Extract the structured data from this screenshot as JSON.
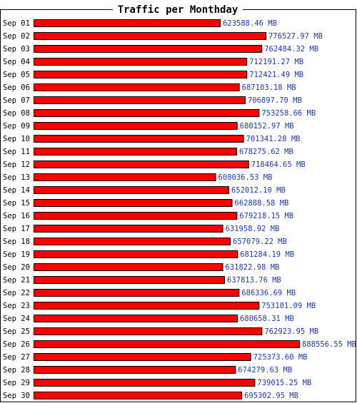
{
  "chart_data": {
    "type": "bar",
    "orientation": "horizontal",
    "title": "Traffic per Monthday",
    "unit": "MB",
    "categories": [
      "Sep 01",
      "Sep 02",
      "Sep 03",
      "Sep 04",
      "Sep 05",
      "Sep 06",
      "Sep 07",
      "Sep 08",
      "Sep 09",
      "Sep 10",
      "Sep 11",
      "Sep 12",
      "Sep 13",
      "Sep 14",
      "Sep 15",
      "Sep 16",
      "Sep 17",
      "Sep 18",
      "Sep 19",
      "Sep 20",
      "Sep 21",
      "Sep 22",
      "Sep 23",
      "Sep 24",
      "Sep 25",
      "Sep 26",
      "Sep 27",
      "Sep 28",
      "Sep 29",
      "Sep 30"
    ],
    "values": [
      623588.46,
      776527.97,
      762484.32,
      712191.27,
      712421.49,
      687103.18,
      706897.7,
      753258.66,
      680152.97,
      701341.28,
      678275.62,
      718464.65,
      608036.53,
      652012.1,
      662888.58,
      679218.15,
      631958.92,
      657079.22,
      681284.19,
      631822.98,
      637813.76,
      686336.69,
      753101.09,
      680658.31,
      762923.95,
      888556.55,
      725373.6,
      674279.63,
      739015.25,
      695302.95
    ],
    "value_labels": [
      "623588.46 MB",
      "776527.97 MB",
      "762484.32 MB",
      "712191.27 MB",
      "712421.49 MB",
      "687103.18 MB",
      "706897.70 MB",
      "753258.66 MB",
      "680152.97 MB",
      "701341.28 MB",
      "678275.62 MB",
      "718464.65 MB",
      "608036.53 MB",
      "652012.10 MB",
      "662888.58 MB",
      "679218.15 MB",
      "631958.92 MB",
      "657079.22 MB",
      "681284.19 MB",
      "631822.98 MB",
      "637813.76 MB",
      "686336.69 MB",
      "753101.09 MB",
      "680658.31 MB",
      "762923.95 MB",
      "888556.55 MB",
      "725373.60 MB",
      "674279.63 MB",
      "739015.25 MB",
      "695302.95 MB"
    ],
    "xlim": [
      0,
      888556.55
    ],
    "grid": false,
    "legend": "none"
  },
  "colors": {
    "bar_fill": "#ff0000",
    "bar_stroke": "#000000",
    "value_text": "#1f3a93",
    "frame": "#000000",
    "background": "#ffffff"
  }
}
